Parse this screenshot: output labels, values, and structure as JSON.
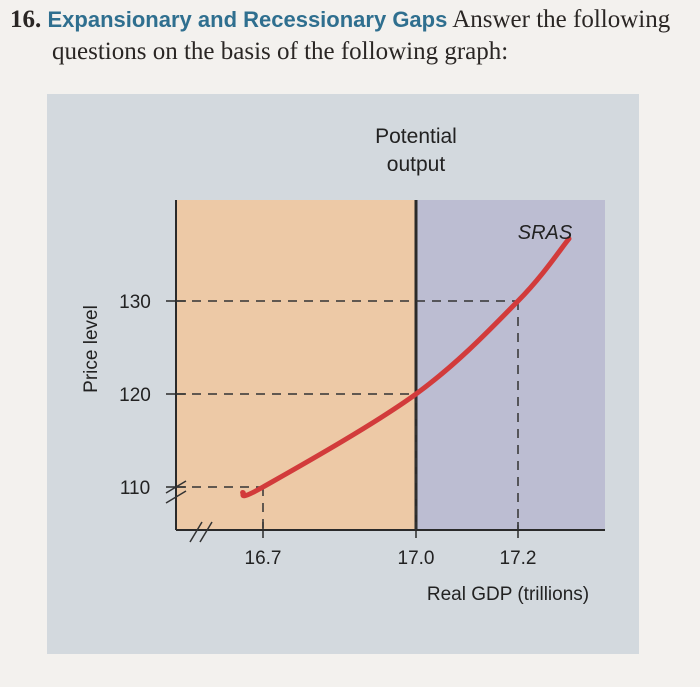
{
  "question": {
    "number": "16.",
    "title": "Expansionary and Recessionary Gaps",
    "text_line1": "Answer the following",
    "text_line2": "questions on the basis of the following graph:"
  },
  "chart_data": {
    "type": "line",
    "xlabel": "Real GDP (trillions)",
    "ylabel": "Price level",
    "x_ticks": [
      "16.7",
      "17.0",
      "17.2"
    ],
    "y_ticks": [
      "110",
      "120",
      "130"
    ],
    "potential_output_label_line1": "Potential",
    "potential_output_label_line2": "output",
    "potential_output_x": 17.0,
    "series": [
      {
        "name": "SRAS",
        "points": [
          [
            16.66,
            109.4
          ],
          [
            16.7,
            110
          ],
          [
            17.0,
            120
          ],
          [
            17.2,
            130
          ],
          [
            17.3,
            136.7
          ]
        ]
      }
    ],
    "reference_points": [
      {
        "x": 16.7,
        "y": 110
      },
      {
        "x": 17.0,
        "y": 120
      },
      {
        "x": 17.2,
        "y": 130
      }
    ],
    "colors": {
      "curve": "#d23b3b",
      "left_region": "#edc9a6",
      "right_region": "#bcbdd2",
      "panel": "#d3d9de"
    }
  }
}
